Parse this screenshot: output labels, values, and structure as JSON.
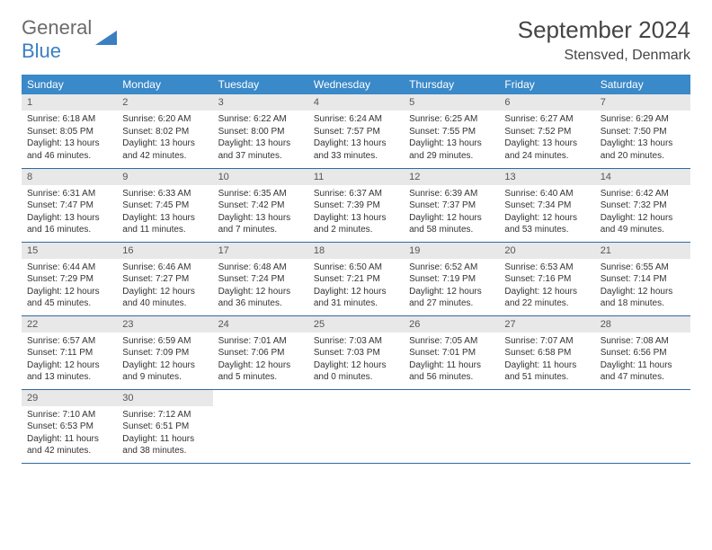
{
  "logo": {
    "text1": "General",
    "text2": "Blue",
    "accent_color": "#3a7fc0"
  },
  "title": "September 2024",
  "location": "Stensved, Denmark",
  "header_bg": "#3a89c9",
  "header_fg": "#ffffff",
  "daynum_bg": "#e8e8e8",
  "border_color": "#2f6aa0",
  "weekdays": [
    "Sunday",
    "Monday",
    "Tuesday",
    "Wednesday",
    "Thursday",
    "Friday",
    "Saturday"
  ],
  "weeks": [
    [
      {
        "n": "1",
        "sr": "6:18 AM",
        "ss": "8:05 PM",
        "dl": "13 hours and 46 minutes."
      },
      {
        "n": "2",
        "sr": "6:20 AM",
        "ss": "8:02 PM",
        "dl": "13 hours and 42 minutes."
      },
      {
        "n": "3",
        "sr": "6:22 AM",
        "ss": "8:00 PM",
        "dl": "13 hours and 37 minutes."
      },
      {
        "n": "4",
        "sr": "6:24 AM",
        "ss": "7:57 PM",
        "dl": "13 hours and 33 minutes."
      },
      {
        "n": "5",
        "sr": "6:25 AM",
        "ss": "7:55 PM",
        "dl": "13 hours and 29 minutes."
      },
      {
        "n": "6",
        "sr": "6:27 AM",
        "ss": "7:52 PM",
        "dl": "13 hours and 24 minutes."
      },
      {
        "n": "7",
        "sr": "6:29 AM",
        "ss": "7:50 PM",
        "dl": "13 hours and 20 minutes."
      }
    ],
    [
      {
        "n": "8",
        "sr": "6:31 AM",
        "ss": "7:47 PM",
        "dl": "13 hours and 16 minutes."
      },
      {
        "n": "9",
        "sr": "6:33 AM",
        "ss": "7:45 PM",
        "dl": "13 hours and 11 minutes."
      },
      {
        "n": "10",
        "sr": "6:35 AM",
        "ss": "7:42 PM",
        "dl": "13 hours and 7 minutes."
      },
      {
        "n": "11",
        "sr": "6:37 AM",
        "ss": "7:39 PM",
        "dl": "13 hours and 2 minutes."
      },
      {
        "n": "12",
        "sr": "6:39 AM",
        "ss": "7:37 PM",
        "dl": "12 hours and 58 minutes."
      },
      {
        "n": "13",
        "sr": "6:40 AM",
        "ss": "7:34 PM",
        "dl": "12 hours and 53 minutes."
      },
      {
        "n": "14",
        "sr": "6:42 AM",
        "ss": "7:32 PM",
        "dl": "12 hours and 49 minutes."
      }
    ],
    [
      {
        "n": "15",
        "sr": "6:44 AM",
        "ss": "7:29 PM",
        "dl": "12 hours and 45 minutes."
      },
      {
        "n": "16",
        "sr": "6:46 AM",
        "ss": "7:27 PM",
        "dl": "12 hours and 40 minutes."
      },
      {
        "n": "17",
        "sr": "6:48 AM",
        "ss": "7:24 PM",
        "dl": "12 hours and 36 minutes."
      },
      {
        "n": "18",
        "sr": "6:50 AM",
        "ss": "7:21 PM",
        "dl": "12 hours and 31 minutes."
      },
      {
        "n": "19",
        "sr": "6:52 AM",
        "ss": "7:19 PM",
        "dl": "12 hours and 27 minutes."
      },
      {
        "n": "20",
        "sr": "6:53 AM",
        "ss": "7:16 PM",
        "dl": "12 hours and 22 minutes."
      },
      {
        "n": "21",
        "sr": "6:55 AM",
        "ss": "7:14 PM",
        "dl": "12 hours and 18 minutes."
      }
    ],
    [
      {
        "n": "22",
        "sr": "6:57 AM",
        "ss": "7:11 PM",
        "dl": "12 hours and 13 minutes."
      },
      {
        "n": "23",
        "sr": "6:59 AM",
        "ss": "7:09 PM",
        "dl": "12 hours and 9 minutes."
      },
      {
        "n": "24",
        "sr": "7:01 AM",
        "ss": "7:06 PM",
        "dl": "12 hours and 5 minutes."
      },
      {
        "n": "25",
        "sr": "7:03 AM",
        "ss": "7:03 PM",
        "dl": "12 hours and 0 minutes."
      },
      {
        "n": "26",
        "sr": "7:05 AM",
        "ss": "7:01 PM",
        "dl": "11 hours and 56 minutes."
      },
      {
        "n": "27",
        "sr": "7:07 AM",
        "ss": "6:58 PM",
        "dl": "11 hours and 51 minutes."
      },
      {
        "n": "28",
        "sr": "7:08 AM",
        "ss": "6:56 PM",
        "dl": "11 hours and 47 minutes."
      }
    ],
    [
      {
        "n": "29",
        "sr": "7:10 AM",
        "ss": "6:53 PM",
        "dl": "11 hours and 42 minutes."
      },
      {
        "n": "30",
        "sr": "7:12 AM",
        "ss": "6:51 PM",
        "dl": "11 hours and 38 minutes."
      },
      null,
      null,
      null,
      null,
      null
    ]
  ],
  "labels": {
    "sunrise": "Sunrise:",
    "sunset": "Sunset:",
    "daylight": "Daylight:"
  }
}
